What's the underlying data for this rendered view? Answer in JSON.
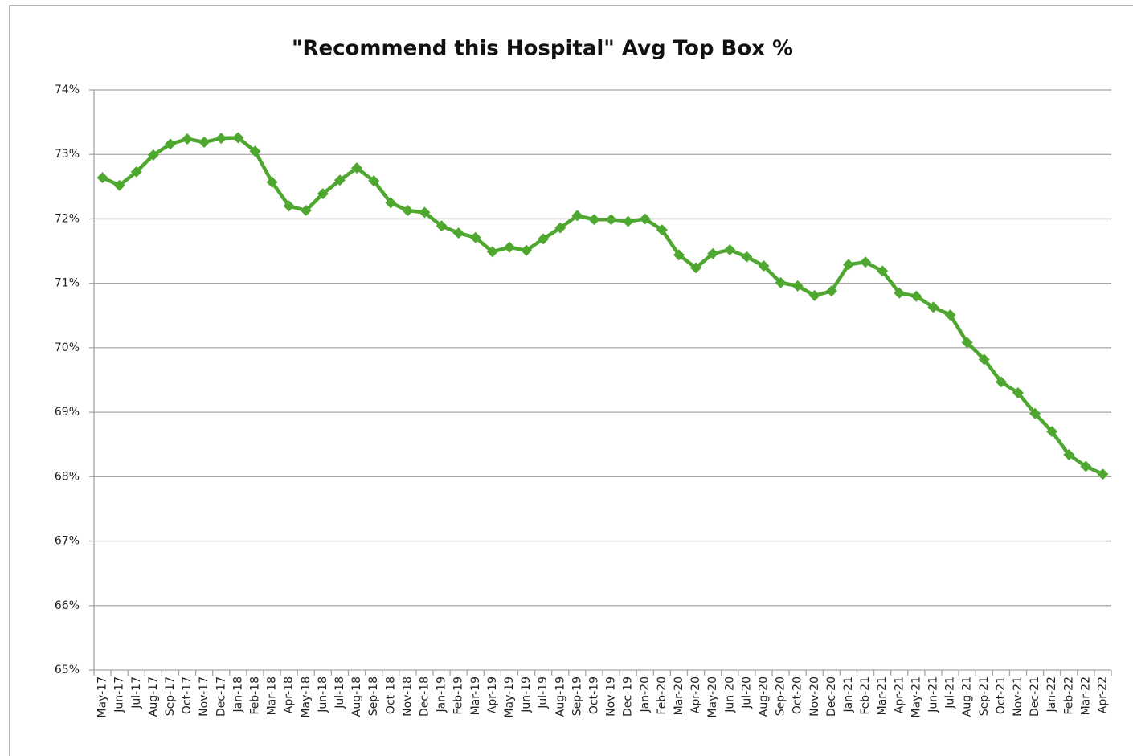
{
  "chart_data": {
    "type": "line",
    "title": "\"Recommend this Hospital\" Avg Top Box %",
    "categories": [
      "May-17",
      "Jun-17",
      "Jul-17",
      "Aug-17",
      "Sep-17",
      "Oct-17",
      "Nov-17",
      "Dec-17",
      "Jan-18",
      "Feb-18",
      "Mar-18",
      "Apr-18",
      "May-18",
      "Jun-18",
      "Jul-18",
      "Aug-18",
      "Sep-18",
      "Oct-18",
      "Nov-18",
      "Dec-18",
      "Jan-19",
      "Feb-19",
      "Mar-19",
      "Apr-19",
      "May-19",
      "Jun-19",
      "Jul-19",
      "Aug-19",
      "Sep-19",
      "Oct-19",
      "Nov-19",
      "Dec-19",
      "Jan-20",
      "Feb-20",
      "Mar-20",
      "Apr-20",
      "May-20",
      "Jun-20",
      "Jul-20",
      "Aug-20",
      "Sep-20",
      "Oct-20",
      "Nov-20",
      "Dec-20",
      "Jan-21",
      "Feb-21",
      "Mar-21",
      "Apr-21",
      "May-21",
      "Jun-21",
      "Jul-21",
      "Aug-21",
      "Sep-21",
      "Oct-21",
      "Nov-21",
      "Dec-21",
      "Jan-22",
      "Feb-22",
      "Mar-22",
      "Apr-22"
    ],
    "values": [
      72.64,
      72.52,
      72.73,
      72.99,
      73.16,
      73.24,
      73.19,
      73.25,
      73.26,
      73.05,
      72.57,
      72.2,
      72.13,
      72.39,
      72.6,
      72.79,
      72.59,
      72.25,
      72.13,
      72.1,
      71.89,
      71.78,
      71.71,
      71.49,
      71.56,
      71.51,
      71.69,
      71.86,
      72.05,
      71.99,
      71.99,
      71.96,
      72.0,
      71.83,
      71.44,
      71.24,
      71.46,
      71.52,
      71.41,
      71.27,
      71.01,
      70.96,
      70.81,
      70.88,
      71.29,
      71.33,
      71.19,
      70.85,
      70.8,
      70.63,
      70.51,
      70.08,
      69.82,
      69.47,
      69.3,
      68.98,
      68.7,
      68.34,
      68.16,
      68.04
    ],
    "color": "#4ea72e",
    "ylim": [
      65,
      74
    ],
    "yticks": [
      {
        "value": 65,
        "label": "65%"
      },
      {
        "value": 66,
        "label": "66%"
      },
      {
        "value": 67,
        "label": "67%"
      },
      {
        "value": 68,
        "label": "68%"
      },
      {
        "value": 69,
        "label": "69%"
      },
      {
        "value": 70,
        "label": "70%"
      },
      {
        "value": 71,
        "label": "71%"
      },
      {
        "value": 72,
        "label": "72%"
      },
      {
        "value": 73,
        "label": "73%"
      },
      {
        "value": 74,
        "label": "74%"
      }
    ],
    "grid": true
  }
}
